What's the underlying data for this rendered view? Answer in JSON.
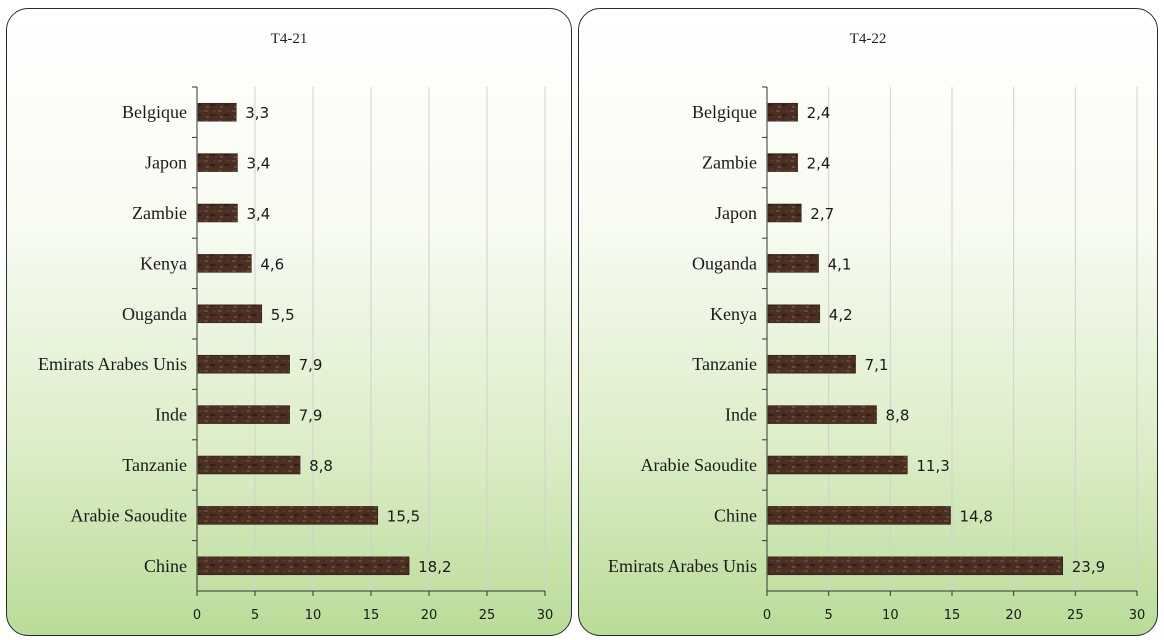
{
  "colors": {
    "bar": "#4a2e22",
    "grid": "#d0d0d0",
    "axis": "#333333"
  },
  "chart_data": [
    {
      "type": "bar",
      "orientation": "horizontal",
      "title": "T4-21",
      "categories": [
        "Belgique",
        "Japon",
        "Zambie",
        "Kenya",
        "Ouganda",
        "Emirats Arabes Unis",
        "Inde",
        "Tanzanie",
        "Arabie Saoudite",
        "Chine"
      ],
      "values": [
        3.3,
        3.4,
        3.4,
        4.6,
        5.5,
        7.9,
        7.9,
        8.8,
        15.5,
        18.2
      ],
      "labels": [
        "3,3",
        "3,4",
        "3,4",
        "4,6",
        "5,5",
        "7,9",
        "7,9",
        "8,8",
        "15,5",
        "18,2"
      ],
      "xlim": [
        0,
        30
      ],
      "xticks": [
        "0",
        "5",
        "10",
        "15",
        "20",
        "25",
        "30"
      ],
      "grid": true
    },
    {
      "type": "bar",
      "orientation": "horizontal",
      "title": "T4-22",
      "categories": [
        "Belgique",
        "Zambie",
        "Japon",
        "Ouganda",
        "Kenya",
        "Tanzanie",
        "Inde",
        "Arabie Saoudite",
        "Chine",
        "Emirats Arabes Unis"
      ],
      "values": [
        2.4,
        2.4,
        2.7,
        4.1,
        4.2,
        7.1,
        8.8,
        11.3,
        14.8,
        23.9
      ],
      "labels": [
        "2,4",
        "2,4",
        "2,7",
        "4,1",
        "4,2",
        "7,1",
        "8,8",
        "11,3",
        "14,8",
        "23,9"
      ],
      "xlim": [
        0,
        30
      ],
      "xticks": [
        "0",
        "5",
        "10",
        "15",
        "20",
        "25",
        "30"
      ],
      "grid": true
    }
  ]
}
